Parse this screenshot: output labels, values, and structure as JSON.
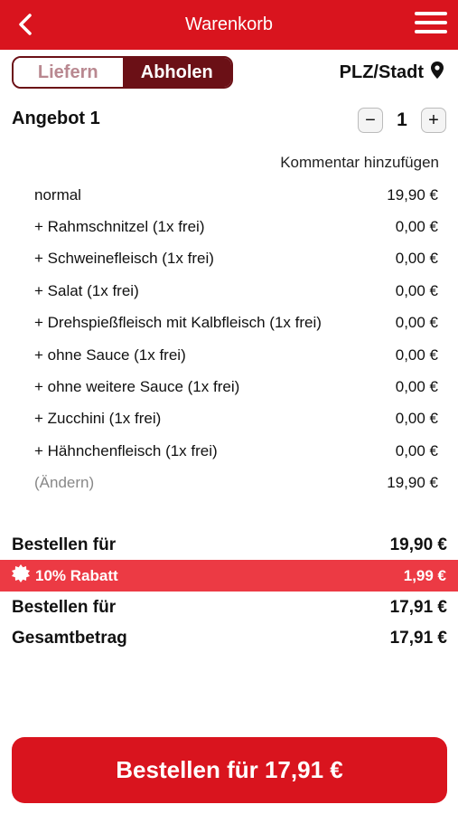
{
  "header": {
    "title": "Warenkorb",
    "back_icon": "chevron-left-icon",
    "menu_icon": "hamburger-menu-icon"
  },
  "mode_toggle": {
    "options": [
      {
        "label": "Liefern",
        "selected": false
      },
      {
        "label": "Abholen",
        "selected": true
      }
    ]
  },
  "location": {
    "label": "PLZ/Stadt",
    "icon": "location-pin-icon"
  },
  "offer": {
    "title": "Angebot 1",
    "quantity": "1",
    "minus_label": "−",
    "plus_label": "+",
    "comment_label": "Kommentar hinzufügen",
    "items": [
      {
        "label": "normal",
        "price": "19,90 €"
      },
      {
        "label": "+ Rahmschnitzel (1x frei)",
        "price": "0,00 €"
      },
      {
        "label": "+ Schweinefleisch (1x frei)",
        "price": "0,00 €"
      },
      {
        "label": "+ Salat (1x frei)",
        "price": "0,00 €"
      },
      {
        "label": "+ Drehspießfleisch mit Kalbfleisch (1x frei)",
        "price": "0,00 €"
      },
      {
        "label": "+ ohne Sauce (1x frei)",
        "price": "0,00 €"
      },
      {
        "label": "+ ohne weitere Sauce (1x frei)",
        "price": "0,00 €"
      },
      {
        "label": "+ Zucchini (1x frei)",
        "price": "0,00 €"
      },
      {
        "label": "+ Hähnchenfleisch (1x frei)",
        "price": "0,00 €"
      }
    ],
    "edit_label": "(Ändern)",
    "edit_total": "19,90 €"
  },
  "summary": {
    "subtotal_label": "Bestellen für",
    "subtotal_value": "19,90 €",
    "discount_label": "10% Rabatt",
    "discount_value": "1,99 €",
    "discounted_label": "Bestellen für",
    "discounted_value": "17,91 €",
    "total_label": "Gesamtbetrag",
    "total_value": "17,91 €"
  },
  "order_button": {
    "label": "Bestellen für 17,91 €"
  },
  "colors": {
    "brand_red": "#d9141e",
    "dark_red": "#6b1016",
    "discount_red": "#ec3a44"
  }
}
